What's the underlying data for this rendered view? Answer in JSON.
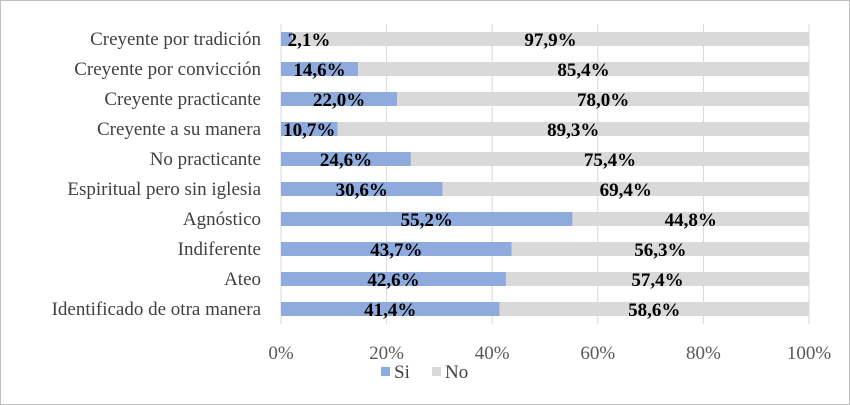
{
  "chart_data": {
    "type": "bar",
    "orientation": "horizontal",
    "stacked": true,
    "percent_stacked": true,
    "categories": [
      "Creyente por tradición",
      "Creyente por convicción",
      "Creyente practicante",
      "Creyente a su manera",
      "No practicante",
      "Espiritual pero sin iglesia",
      "Agnóstico",
      "Indiferente",
      "Ateo",
      "Identificado de otra manera"
    ],
    "series": [
      {
        "name": "Si",
        "color": "#8faadc",
        "values": [
          2.1,
          14.6,
          22.0,
          10.7,
          24.6,
          30.6,
          55.2,
          43.7,
          42.6,
          41.4
        ],
        "labels": [
          "2,1%",
          "14,6%",
          "22,0%",
          "10,7%",
          "24,6%",
          "30,6%",
          "55,2%",
          "43,7%",
          "42,6%",
          "41,4%"
        ]
      },
      {
        "name": "No",
        "color": "#d9d9d9",
        "values": [
          97.9,
          85.4,
          78.0,
          89.3,
          75.4,
          69.4,
          44.8,
          56.3,
          57.4,
          58.6
        ],
        "labels": [
          "97,9%",
          "85,4%",
          "78,0%",
          "89,3%",
          "75,4%",
          "69,4%",
          "44,8%",
          "56,3%",
          "57,4%",
          "58,6%"
        ]
      }
    ],
    "x_ticks": [
      "0%",
      "20%",
      "40%",
      "60%",
      "80%",
      "100%"
    ],
    "xlim": [
      0,
      100
    ],
    "grid": true,
    "legend_position": "bottom"
  }
}
